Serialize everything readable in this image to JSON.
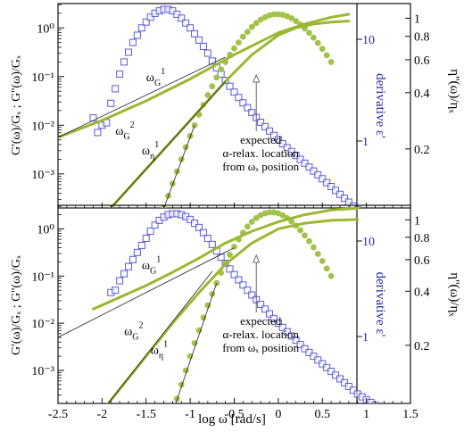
{
  "figure": {
    "shared_xlabel": "log ω [rad/s]",
    "x_ticks": [
      "-2.5",
      "-2",
      "-1.5",
      "-1",
      "-0.5",
      "0",
      "0.5",
      "1",
      "1.5"
    ],
    "left_ylabel": "G'(ω)/Gₓ ; G''(ω)/Gₓ",
    "left_y_ticks": [
      "10⁰",
      "10⁻¹",
      "10⁻²",
      "10⁻³"
    ],
    "right_ylabel": "η''(ω)/ηₓ",
    "right_y_ticks": [
      "1",
      "0.8",
      "0.6",
      "0.4",
      "0.2"
    ],
    "inner_label": "derivative ε'",
    "inner_ticks": [
      "10",
      "1"
    ],
    "colors": {
      "derivative_squares": "#5a5ad6",
      "olive_line": "#9ab832",
      "olive_dots": "#a3c24b",
      "fit_line": "#222222",
      "inner_text": "#2a2aa8",
      "frame": "#111111"
    }
  },
  "chart_data": [
    {
      "type": "scatter",
      "panel": "top",
      "xlabel": "log ω [rad/s]",
      "ylabel": "G'(ω)/Gₓ ; G''(ω)/Gₓ",
      "xlim": [
        -2.5,
        1.5
      ],
      "ylim_log10": [
        -3.7,
        0.5
      ],
      "y_scale": "log",
      "right_axis": {
        "label": "η''(ω)/ηₓ",
        "scale": "log",
        "ticks": [
          1,
          0.8,
          0.6,
          0.4,
          0.2
        ]
      },
      "inner_axis": {
        "label": "derivative ε'",
        "scale": "log",
        "ticks": [
          10,
          1
        ]
      },
      "series": [
        {
          "role": "derivative_eps",
          "marker": "open-square",
          "x": [
            -2.1,
            -2.05,
            -2.0,
            -1.95,
            -1.9,
            -1.85,
            -1.8,
            -1.75,
            -1.7,
            -1.65,
            -1.6,
            -1.55,
            -1.5,
            -1.45,
            -1.4,
            -1.35,
            -1.3,
            -1.25,
            -1.2,
            -1.15,
            -1.1,
            -1.05,
            -1.0,
            -0.95,
            -0.9,
            -0.85,
            -0.8,
            -0.75,
            -0.7,
            -0.65,
            -0.6,
            -0.55,
            -0.5,
            -0.45,
            -0.4,
            -0.35,
            -0.3,
            -0.25,
            -0.2,
            -0.15,
            -0.1,
            -0.05,
            0.0,
            0.05,
            0.1,
            0.15,
            0.2,
            0.25,
            0.3,
            0.35,
            0.4,
            0.45,
            0.5,
            0.55,
            0.6,
            0.65,
            0.7,
            0.75,
            0.8,
            0.85,
            0.9,
            0.95,
            1.0,
            1.05,
            1.1,
            1.15,
            1.2,
            1.25,
            1.3,
            1.35,
            1.4,
            1.45,
            1.5
          ],
          "y": [
            -1.85,
            -2.15,
            -2.0,
            -1.95,
            -1.55,
            -1.25,
            -0.95,
            -0.7,
            -0.5,
            -0.3,
            -0.15,
            0.0,
            0.12,
            0.22,
            0.3,
            0.35,
            0.38,
            0.38,
            0.35,
            0.28,
            0.2,
            0.1,
            0.0,
            -0.12,
            -0.25,
            -0.38,
            -0.52,
            -0.68,
            -0.82,
            -0.95,
            -1.08,
            -1.2,
            -1.32,
            -1.43,
            -1.54,
            -1.64,
            -1.74,
            -1.84,
            -1.94,
            -2.03,
            -2.12,
            -2.21,
            -2.3,
            -2.38,
            -2.46,
            -2.54,
            -2.62,
            -2.7,
            -2.78,
            -2.86,
            -2.94,
            -3.02,
            -3.1,
            -3.18,
            -3.26,
            -3.34,
            -3.42,
            -3.5,
            -3.58,
            -3.66,
            -3.74,
            -3.8,
            -3.86,
            -3.92,
            -3.98,
            -4.04,
            -4.1,
            -4.16,
            -4.22,
            -4.28,
            -4.34,
            -4.4,
            -4.46
          ]
        },
        {
          "role": "eta_double_prime",
          "marker": "filled-circle",
          "x": [
            -1.4,
            -1.35,
            -1.3,
            -1.25,
            -1.2,
            -1.15,
            -1.1,
            -1.05,
            -1.0,
            -0.95,
            -0.9,
            -0.85,
            -0.8,
            -0.75,
            -0.7,
            -0.65,
            -0.6,
            -0.55,
            -0.5,
            -0.45,
            -0.4,
            -0.35,
            -0.3,
            -0.25,
            -0.2,
            -0.15,
            -0.1,
            -0.05,
            0.0,
            0.05,
            0.1,
            0.15,
            0.2,
            0.25,
            0.3,
            0.35,
            0.4,
            0.45,
            0.5,
            0.55,
            0.6
          ],
          "y": [
            -4.2,
            -3.95,
            -3.7,
            -3.45,
            -3.2,
            -2.95,
            -2.7,
            -2.45,
            -2.22,
            -2.0,
            -1.78,
            -1.58,
            -1.38,
            -1.2,
            -1.02,
            -0.85,
            -0.7,
            -0.55,
            -0.42,
            -0.3,
            -0.18,
            -0.08,
            0.02,
            0.1,
            0.17,
            0.22,
            0.26,
            0.28,
            0.28,
            0.27,
            0.24,
            0.2,
            0.14,
            0.07,
            -0.01,
            -0.1,
            -0.2,
            -0.31,
            -0.43,
            -0.56,
            -0.7
          ]
        },
        {
          "role": "G_prime_prime_line_1",
          "marker": "line",
          "x": [
            -2.5,
            -2.0,
            -1.5,
            -1.0,
            -0.5,
            0.0,
            0.3,
            0.6,
            0.8
          ],
          "y": [
            -2.25,
            -1.9,
            -1.5,
            -1.05,
            -0.55,
            -0.1,
            0.08,
            0.22,
            0.28
          ]
        },
        {
          "role": "G_prime_line_2",
          "marker": "line",
          "x": [
            -2.1,
            -1.8,
            -1.5,
            -1.2,
            -0.9,
            -0.6,
            -0.3,
            0.0,
            0.2,
            0.4,
            0.6,
            0.8
          ],
          "y": [
            -4.1,
            -3.5,
            -2.9,
            -2.3,
            -1.7,
            -1.1,
            -0.55,
            -0.15,
            0.0,
            0.08,
            0.12,
            0.14
          ]
        },
        {
          "role": "fit_omega_G_1",
          "marker": "thin-line",
          "x": [
            -2.5,
            -0.6
          ],
          "y": [
            -2.25,
            -0.6
          ]
        },
        {
          "role": "fit_omega_G_2",
          "marker": "thin-line",
          "x": [
            -2.1,
            -0.6
          ],
          "y": [
            -4.1,
            -1.1
          ]
        },
        {
          "role": "fit_omega_eta_1",
          "marker": "thin-line",
          "x": [
            -1.4,
            -0.95
          ],
          "y": [
            -4.2,
            -2.0
          ]
        }
      ],
      "annotations": [
        {
          "text": "ωG1",
          "label_base": "ω",
          "sub": "G",
          "sup": "1"
        },
        {
          "text": "ωG2",
          "label_base": "ω",
          "sub": "G",
          "sup": "2"
        },
        {
          "text": "ωη1",
          "label_base": "ω",
          "sub": "η",
          "sup": "1"
        },
        {
          "text_lines": [
            "expected",
            "α-relax. location",
            "from ωₓ position"
          ],
          "arrow_x": -0.25
        }
      ]
    },
    {
      "type": "scatter",
      "panel": "bottom",
      "xlabel": "log ω [rad/s]",
      "ylabel": "G'(ω)/Gₓ ; G''(ω)/Gₓ",
      "xlim": [
        -2.5,
        1.5
      ],
      "ylim_log10": [
        -3.7,
        0.5
      ],
      "y_scale": "log",
      "right_axis": {
        "label": "η''(ω)/ηₓ",
        "scale": "log",
        "ticks": [
          1,
          0.8,
          0.6,
          0.4,
          0.2
        ]
      },
      "inner_axis": {
        "label": "derivative ε'",
        "scale": "log",
        "ticks": [
          10,
          1
        ]
      },
      "series": [
        {
          "role": "derivative_eps",
          "marker": "open-square",
          "x": [
            -1.9,
            -1.85,
            -1.8,
            -1.75,
            -1.7,
            -1.65,
            -1.6,
            -1.55,
            -1.5,
            -1.45,
            -1.4,
            -1.35,
            -1.3,
            -1.25,
            -1.2,
            -1.15,
            -1.1,
            -1.05,
            -1.0,
            -0.95,
            -0.9,
            -0.85,
            -0.8,
            -0.75,
            -0.7,
            -0.65,
            -0.6,
            -0.55,
            -0.5,
            -0.45,
            -0.4,
            -0.35,
            -0.3,
            -0.25,
            -0.2,
            -0.15,
            -0.1,
            -0.05,
            0.0,
            0.05,
            0.1,
            0.15,
            0.2,
            0.25,
            0.3,
            0.35,
            0.4,
            0.45,
            0.5,
            0.55,
            0.6,
            0.65,
            0.7,
            0.75,
            0.8,
            0.85,
            0.9,
            0.95,
            1.0,
            1.05,
            1.1,
            1.15,
            1.2,
            1.25,
            1.3,
            1.35,
            1.4,
            1.45,
            1.5
          ],
          "y": [
            -1.35,
            -1.3,
            -1.1,
            -0.95,
            -0.8,
            -0.65,
            -0.5,
            -0.35,
            -0.2,
            -0.05,
            0.08,
            0.18,
            0.25,
            0.3,
            0.32,
            0.32,
            0.3,
            0.26,
            0.2,
            0.12,
            0.03,
            -0.08,
            -0.2,
            -0.33,
            -0.47,
            -0.6,
            -0.73,
            -0.85,
            -0.97,
            -1.08,
            -1.19,
            -1.3,
            -1.4,
            -1.5,
            -1.6,
            -1.7,
            -1.8,
            -1.9,
            -2.0,
            -2.09,
            -2.18,
            -2.27,
            -2.36,
            -2.45,
            -2.54,
            -2.62,
            -2.7,
            -2.78,
            -2.86,
            -2.94,
            -3.02,
            -3.1,
            -3.18,
            -3.26,
            -3.34,
            -3.42,
            -3.5,
            -3.56,
            -3.62,
            -3.68,
            -3.74,
            -3.8,
            -3.86,
            -3.92,
            -3.98,
            -4.04,
            -4.1,
            -4.16,
            -4.22
          ]
        },
        {
          "role": "eta_double_prime",
          "marker": "filled-circle",
          "x": [
            -1.2,
            -1.15,
            -1.1,
            -1.05,
            -1.0,
            -0.95,
            -0.9,
            -0.85,
            -0.8,
            -0.75,
            -0.7,
            -0.65,
            -0.6,
            -0.55,
            -0.5,
            -0.45,
            -0.4,
            -0.35,
            -0.3,
            -0.25,
            -0.2,
            -0.15,
            -0.1,
            -0.05,
            0.0,
            0.05,
            0.1,
            0.15,
            0.2,
            0.25,
            0.3,
            0.35,
            0.4,
            0.45,
            0.5,
            0.55,
            0.6
          ],
          "y": [
            -3.9,
            -3.6,
            -3.3,
            -3.0,
            -2.7,
            -2.42,
            -2.15,
            -1.88,
            -1.62,
            -1.38,
            -1.15,
            -0.93,
            -0.73,
            -0.55,
            -0.38,
            -0.22,
            -0.08,
            0.05,
            0.15,
            0.23,
            0.29,
            0.33,
            0.35,
            0.35,
            0.33,
            0.29,
            0.23,
            0.16,
            0.07,
            -0.03,
            -0.14,
            -0.26,
            -0.39,
            -0.53,
            -0.68,
            -0.84,
            -1.0
          ]
        },
        {
          "role": "G_prime_prime_line_1",
          "marker": "line",
          "x": [
            -2.1,
            -1.8,
            -1.5,
            -1.2,
            -0.9,
            -0.6,
            -0.3,
            0.0,
            0.3,
            0.6,
            0.9
          ],
          "y": [
            -1.7,
            -1.45,
            -1.2,
            -0.92,
            -0.62,
            -0.3,
            -0.05,
            0.15,
            0.3,
            0.4,
            0.44
          ]
        },
        {
          "role": "G_prime_line_2",
          "marker": "line",
          "x": [
            -2.1,
            -1.8,
            -1.5,
            -1.2,
            -0.9,
            -0.6,
            -0.3,
            0.0,
            0.3,
            0.6,
            0.9
          ],
          "y": [
            -4.1,
            -3.4,
            -2.7,
            -2.0,
            -1.35,
            -0.75,
            -0.3,
            0.0,
            0.12,
            0.18,
            0.2
          ]
        },
        {
          "role": "fit_omega_G_1",
          "marker": "thin-line",
          "x": [
            -2.5,
            -0.5
          ],
          "y": [
            -2.3,
            -0.4
          ]
        },
        {
          "role": "fit_omega_G_2",
          "marker": "thin-line",
          "x": [
            -2.1,
            -0.75
          ],
          "y": [
            -4.1,
            -0.9
          ]
        },
        {
          "role": "fit_omega_eta_1",
          "marker": "thin-line",
          "x": [
            -1.2,
            -0.7
          ],
          "y": [
            -3.9,
            -1.15
          ]
        }
      ],
      "annotations": [
        {
          "text": "ωG1",
          "label_base": "ω",
          "sub": "G",
          "sup": "1"
        },
        {
          "text": "ωG2",
          "label_base": "ω",
          "sub": "G",
          "sup": "2"
        },
        {
          "text": "ωη1",
          "label_base": "ω",
          "sub": "η",
          "sup": "1"
        },
        {
          "text_lines": [
            "expected",
            "α-relax. location",
            "from ωₓ position"
          ],
          "arrow_x": -0.25
        }
      ]
    }
  ]
}
